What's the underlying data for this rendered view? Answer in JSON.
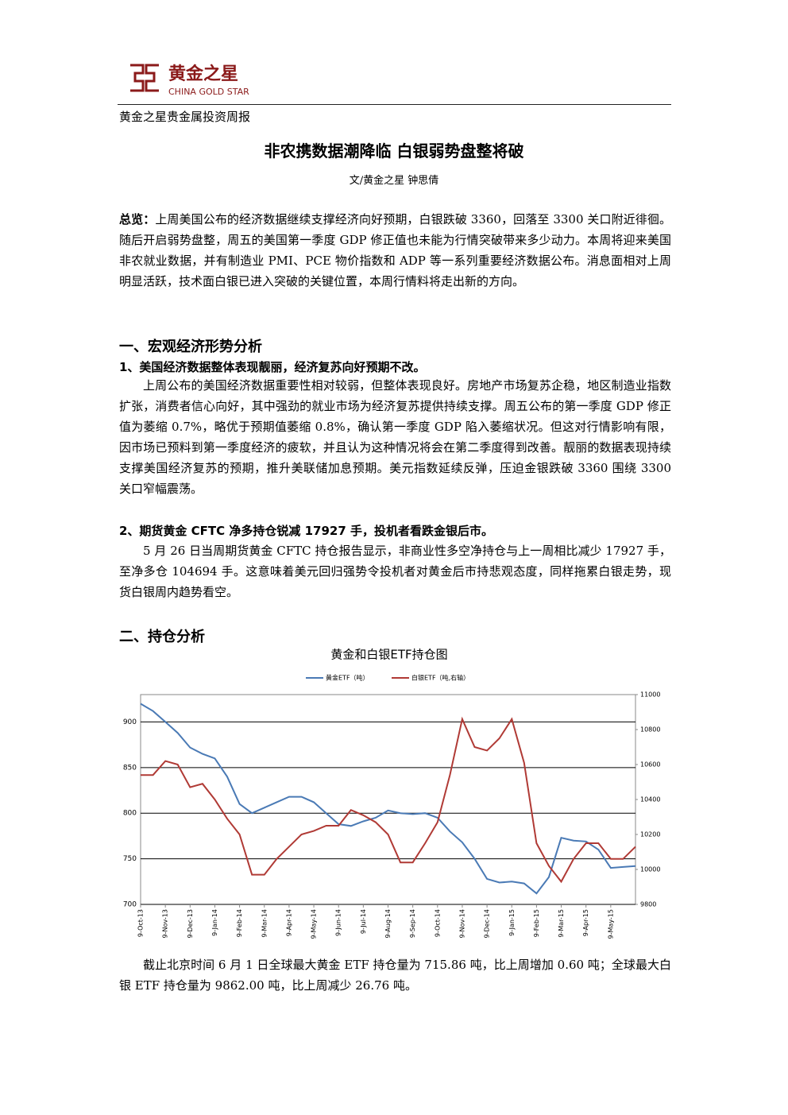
{
  "header": {
    "logo_cn": "黄金之星",
    "logo_en": "CHINA GOLD STAR",
    "report": "黄金之星贵金属投资周报"
  },
  "title": "非农携数据潮降临 白银弱势盘整将破",
  "byline": "文/黄金之星 钟思倩",
  "summary": {
    "label": "总览：",
    "text": "上周美国公布的经济数据继续支撑经济向好预期，白银跌破 3360，回落至 3300 关口附近徘徊。随后开启弱势盘整，周五的美国第一季度 GDP 修正值也未能为行情突破带来多少动力。本周将迎来美国非农就业数据，并有制造业 PMI、PCE 物价指数和 ADP 等一系列重要经济数据公布。消息面相对上周明显活跃，技术面白银已进入突破的关键位置，本周行情料将走出新的方向。"
  },
  "sections": [
    {
      "heading": "一、宏观经济形势分析",
      "subsections": [
        {
          "heading": "1、美国经济数据整体表现靓丽，经济复苏向好预期不改。",
          "text": "上周公布的美国经济数据重要性相对较弱，但整体表现良好。房地产市场复苏企稳，地区制造业指数扩张，消费者信心向好，其中强劲的就业市场为经济复苏提供持续支撑。周五公布的第一季度 GDP 修正值为萎缩 0.7%，略优于预期值萎缩 0.8%，确认第一季度 GDP 陷入萎缩状况。但这对行情影响有限，因市场已预料到第一季度经济的疲软，并且认为这种情况将会在第二季度得到改善。靓丽的数据表现持续支撑美国经济复苏的预期，推升美联储加息预期。美元指数延续反弹，压迫金银跌破 3360 围绕 3300 关口窄幅震荡。"
        },
        {
          "heading": "2、期货黄金 CFTC 净多持仓锐减 17927 手，投机者看跌金银后市。",
          "text": "5 月 26 日当周期货黄金 CFTC 持仓报告显示，非商业性多空净持仓与上一周相比减少 17927 手，至净多仓 104694 手。这意味着美元回归强势令投机者对黄金后市持悲观态度，同样拖累白银走势，现货白银周内趋势看空。"
        }
      ]
    },
    {
      "heading": "二、持仓分析",
      "text": "截止北京时间 6 月 1 日全球最大黄金 ETF 持仓量为 715.86 吨，比上周增加 0.60 吨；全球最大白银 ETF 持仓量为 9862.00 吨，比上周减少 26.76 吨。"
    }
  ],
  "chart_data": {
    "type": "line",
    "title": "黄金和白银ETF持仓图",
    "categories": [
      "9-Oct-13",
      null,
      "9-Nov-13",
      null,
      "9-Dec-13",
      null,
      "9-Jan-14",
      null,
      "9-Feb-14",
      null,
      "9-Mar-14",
      null,
      "9-Apr-14",
      null,
      "9-May-14",
      null,
      "9-Jun-14",
      null,
      "9-Jul-14",
      null,
      "9-Aug-14",
      null,
      "9-Sep-14",
      null,
      "9-Oct-14",
      null,
      "9-Nov-14",
      null,
      "9-Dec-14",
      null,
      "9-Jan-15",
      null,
      "9-Feb-15",
      null,
      "9-Mar-15",
      null,
      "9-Apr-15",
      null,
      "9-May-15",
      null,
      null
    ],
    "series": [
      {
        "name": "黄金ETF（吨）",
        "color": "#4a7ab5",
        "axis": "y",
        "values": [
          920,
          912,
          900,
          888,
          872,
          865,
          860,
          840,
          810,
          800,
          806,
          812,
          818,
          818,
          812,
          800,
          788,
          786,
          791,
          795,
          803,
          800,
          799,
          800,
          795,
          780,
          768,
          750,
          728,
          724,
          725,
          723,
          712,
          730,
          773,
          770,
          769,
          760,
          740,
          741,
          742
        ]
      },
      {
        "name": "白银ETF（吨,右轴）",
        "color": "#b03a35",
        "axis": "y2",
        "values": [
          10540,
          10540,
          10620,
          10600,
          10470,
          10490,
          10400,
          10290,
          10200,
          9970,
          9970,
          10060,
          10130,
          10200,
          10220,
          10250,
          10250,
          10340,
          10310,
          10270,
          10200,
          10040,
          10040,
          10150,
          10270,
          10540,
          10860,
          10700,
          10680,
          10750,
          10860,
          10610,
          10150,
          10020,
          9930,
          10060,
          10150,
          10150,
          10060,
          10060,
          10130
        ]
      }
    ],
    "ylim": [
      700,
      930
    ],
    "yticks": [
      700,
      750,
      800,
      850,
      900
    ],
    "y2lim": [
      9800,
      11000
    ],
    "y2ticks": [
      9800,
      10000,
      10200,
      10400,
      10600,
      10800,
      11000
    ],
    "grid": true
  }
}
